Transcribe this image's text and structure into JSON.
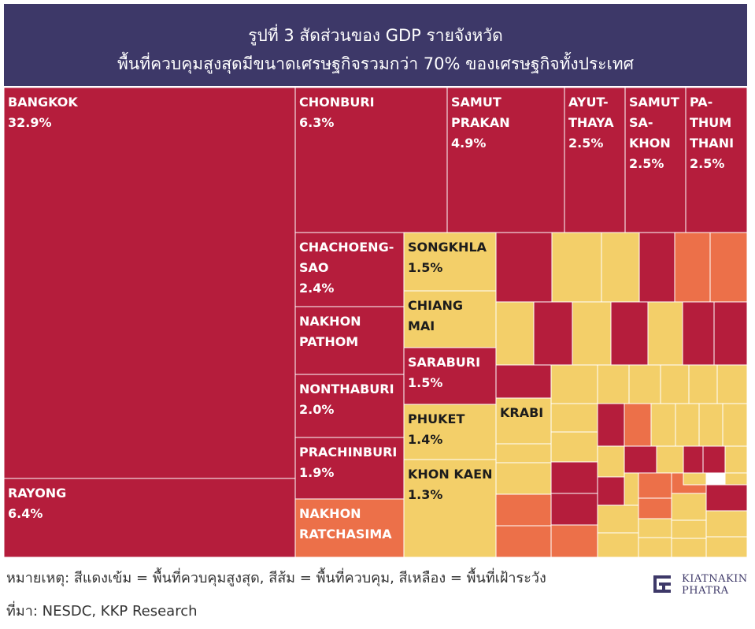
{
  "header": {
    "title_line1": "รูปที่ 3 สัดส่วนของ GDP รายจังหวัด",
    "title_line2": "พื้นที่ควบคุมสูงสุดมีขนาดเศรษฐกิจรวมกว่า 70% ของเศรษฐกิจทั้งประเทศ"
  },
  "colors": {
    "header_bg": "#3d3868",
    "highest_control": "#b51d3c",
    "control": "#ec7049",
    "surveillance": "#f3cf69",
    "border": "#ffffff",
    "label_on_red": "#ffffff",
    "label_on_yellow": "#1c1c1c"
  },
  "chart_data": {
    "type": "treemap",
    "title": "รูปที่ 3 สัดส่วนของ GDP รายจังหวัด",
    "subtitle": "พื้นที่ควบคุมสูงสุดมีขนาดเศรษฐกิจรวมกว่า 70% ของเศรษฐกิจทั้งประเทศ",
    "unit": "% of national GDP",
    "legend": [
      {
        "category": "highest_control",
        "label": "สีแดงเข้ม = พื้นที่ควบคุมสูงสุด",
        "color": "#b51d3c"
      },
      {
        "category": "control",
        "label": "สีส้ม = พื้นที่ควบคุม",
        "color": "#ec7049"
      },
      {
        "category": "surveillance",
        "label": "สีเหลือง = พื้นที่เฝ้าระวัง",
        "color": "#f3cf69"
      }
    ],
    "labeled_provinces": [
      {
        "lines": [
          "BANGKOK"
        ],
        "value": 32.9,
        "share": "32.9%",
        "category": "highest_control"
      },
      {
        "lines": [
          "RAYONG"
        ],
        "value": 6.4,
        "share": "6.4%",
        "category": "highest_control"
      },
      {
        "lines": [
          "CHONBURI"
        ],
        "value": 6.3,
        "share": "6.3%",
        "category": "highest_control"
      },
      {
        "lines": [
          "SAMUT",
          "PRAKAN"
        ],
        "value": 4.9,
        "share": "4.9%",
        "category": "highest_control"
      },
      {
        "lines": [
          "AYUT-",
          "THAYA"
        ],
        "value": 2.5,
        "share": "2.5%",
        "category": "highest_control"
      },
      {
        "lines": [
          "SAMUT",
          "SA-",
          "KHON"
        ],
        "value": 2.5,
        "share": "2.5%",
        "category": "highest_control"
      },
      {
        "lines": [
          "PA-",
          "THUM",
          "THANI"
        ],
        "value": 2.5,
        "share": "2.5%",
        "category": "highest_control"
      },
      {
        "lines": [
          "CHACHOENG-",
          "SAO"
        ],
        "value": 2.4,
        "share": "2.4%",
        "category": "highest_control"
      },
      {
        "lines": [
          "NAKHON",
          "PATHOM"
        ],
        "value": null,
        "share": "",
        "category": "highest_control"
      },
      {
        "lines": [
          "NONTHABURI"
        ],
        "value": 2.0,
        "share": "2.0%",
        "category": "highest_control"
      },
      {
        "lines": [
          "PRACHINBURI"
        ],
        "value": 1.9,
        "share": "1.9%",
        "category": "highest_control"
      },
      {
        "lines": [
          "NAKHON",
          "RATCHASIMA"
        ],
        "value": null,
        "share": "",
        "category": "control"
      },
      {
        "lines": [
          "SONGKHLA"
        ],
        "value": 1.5,
        "share": "1.5%",
        "category": "surveillance"
      },
      {
        "lines": [
          "CHIANG",
          "MAI"
        ],
        "value": null,
        "share": "",
        "category": "surveillance"
      },
      {
        "lines": [
          "SARABURI"
        ],
        "value": 1.5,
        "share": "1.5%",
        "category": "highest_control"
      },
      {
        "lines": [
          "PHUKET"
        ],
        "value": 1.4,
        "share": "1.4%",
        "category": "surveillance"
      },
      {
        "lines": [
          "KHON KAEN"
        ],
        "value": 1.3,
        "share": "1.3%",
        "category": "surveillance"
      },
      {
        "lines": [
          "KRABI"
        ],
        "value": null,
        "share": "",
        "category": "surveillance"
      }
    ],
    "unlabeled_cells": [
      {
        "category": "highest_control"
      },
      {
        "category": "surveillance"
      },
      {
        "category": "surveillance"
      },
      {
        "category": "highest_control"
      },
      {
        "category": "control"
      },
      {
        "category": "control"
      },
      {
        "category": "surveillance"
      },
      {
        "category": "highest_control"
      },
      {
        "category": "surveillance"
      },
      {
        "category": "highest_control"
      },
      {
        "category": "surveillance"
      },
      {
        "category": "highest_control"
      },
      {
        "category": "highest_control"
      },
      {
        "category": "highest_control"
      },
      {
        "category": "surveillance"
      },
      {
        "category": "surveillance"
      },
      {
        "category": "surveillance"
      },
      {
        "category": "surveillance"
      },
      {
        "category": "surveillance"
      },
      {
        "category": "surveillance"
      },
      {
        "category": "surveillance"
      },
      {
        "category": "highest_control"
      },
      {
        "category": "control"
      },
      {
        "category": "surveillance"
      },
      {
        "category": "surveillance"
      },
      {
        "category": "surveillance"
      },
      {
        "category": "surveillance"
      },
      {
        "category": "surveillance"
      },
      {
        "category": "surveillance"
      },
      {
        "category": "surveillance"
      },
      {
        "category": "highest_control"
      },
      {
        "category": "surveillance"
      },
      {
        "category": "highest_control"
      },
      {
        "category": "control"
      },
      {
        "category": "control"
      },
      {
        "category": "highest_control"
      },
      {
        "category": "highest_control"
      },
      {
        "category": "surveillance"
      },
      {
        "category": "highest_control"
      },
      {
        "category": "highest_control"
      },
      {
        "category": "surveillance"
      },
      {
        "category": "control"
      },
      {
        "category": "surveillance"
      },
      {
        "category": "control"
      },
      {
        "category": "control"
      },
      {
        "category": "highest_control"
      },
      {
        "category": "surveillance"
      },
      {
        "category": "control"
      },
      {
        "category": "surveillance"
      },
      {
        "category": "surveillance"
      },
      {
        "category": "surveillance"
      },
      {
        "category": "surveillance"
      },
      {
        "category": "surveillance"
      },
      {
        "category": "surveillance"
      },
      {
        "category": "surveillance"
      },
      {
        "category": "surveillance"
      },
      {
        "category": "surveillance"
      },
      {
        "category": "surveillance"
      }
    ]
  },
  "footer": {
    "note": "หมายเหตุ: สีแดงเข้ม = พื้นที่ควบคุมสูงสุด, สีส้ม = พื้นที่ควบคุม, สีเหลือง = พื้นที่เฝ้าระวัง",
    "source": "ที่มา: NESDC, KKP Research",
    "logo_line1": "KIATNAKIN",
    "logo_line2": "PHATRA"
  }
}
